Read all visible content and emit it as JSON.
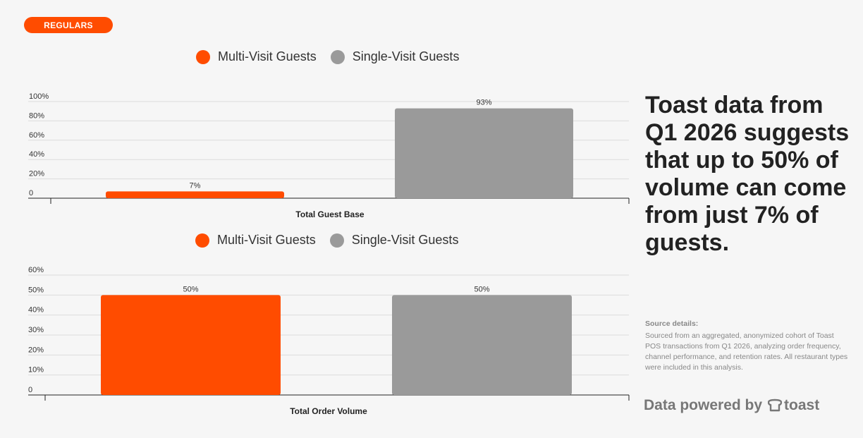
{
  "badge": "REGULARS",
  "colors": {
    "accent": "#ff4c00",
    "gray": "#9a9a9a"
  },
  "legend1": {
    "a": "Multi-Visit Guests",
    "b": "Single-Visit Guests"
  },
  "legend2": {
    "a": "Multi-Visit Guests",
    "b": "Single-Visit Guests"
  },
  "chart_data": [
    {
      "type": "bar",
      "categories": [
        "Multi-Visit Guests",
        "Single-Visit Guests"
      ],
      "values": [
        7,
        93
      ],
      "value_labels": [
        "7%",
        "93%"
      ],
      "ylim": [
        0,
        100
      ],
      "yticks": [
        "0",
        "20%",
        "40%",
        "60%",
        "80%",
        "100%"
      ],
      "xlabel": "Total Guest Base",
      "grid": true
    },
    {
      "type": "bar",
      "categories": [
        "Multi-Visit Guests",
        "Single-Visit Guests"
      ],
      "values": [
        50,
        50
      ],
      "value_labels": [
        "50%",
        "50%"
      ],
      "ylim": [
        0,
        60
      ],
      "yticks": [
        "0",
        "10%",
        "20%",
        "30%",
        "40%",
        "50%",
        "60%"
      ],
      "xlabel": "Total Order Volume",
      "grid": true
    }
  ],
  "headline": "Toast data from Q1 2026 suggests that up to 50% of volume can come from just 7% of guests.",
  "source": {
    "title": "Source details:",
    "text": "Sourced from an aggregated, anonymized cohort of Toast POS transactions from Q1 2026, analyzing order frequency, channel performance, and retention rates. All restaurant types were included in this analysis."
  },
  "brand": {
    "prefix": "Data powered by",
    "name": "toast"
  }
}
